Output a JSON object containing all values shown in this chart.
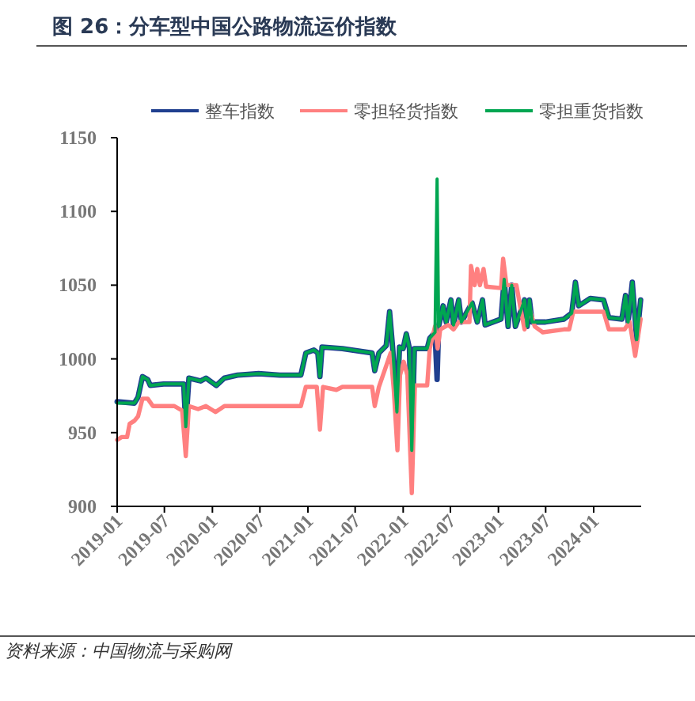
{
  "chart_data": {
    "type": "line",
    "title": "图 26：分车型中国公路物流运价指数",
    "annotations": [
      "资料来源：中国物流与采购网"
    ],
    "xlim": [
      "2019-01",
      "2024-07"
    ],
    "xticks": [
      "2019-01",
      "2019-07",
      "2020-01",
      "2020-07",
      "2021-01",
      "2021-07",
      "2022-01",
      "2022-07",
      "2023-01",
      "2023-07",
      "2024-01"
    ],
    "ylim": [
      900,
      1150
    ],
    "yticks": [
      900,
      950,
      1000,
      1050,
      1100,
      1150
    ],
    "legend": "top",
    "series": [
      {
        "name": "整车指数",
        "color": "#1f3f8f",
        "x": [
          "2019-01-01",
          "2019-03-08",
          "2019-03-22",
          "2019-04-08",
          "2019-04-28",
          "2019-05-08",
          "2019-06-28",
          "2019-09-13",
          "2019-09-21",
          "2019-10-03",
          "2019-11-17",
          "2019-12-07",
          "2020-01-16",
          "2020-02-16",
          "2020-04-06",
          "2020-06-26",
          "2020-09-15",
          "2020-12-05",
          "2020-12-24",
          "2021-01-24",
          "2021-02-08",
          "2021-02-16",
          "2021-02-24",
          "2021-05-13",
          "2021-09-04",
          "2021-09-14",
          "2021-09-30",
          "2021-10-28",
          "2021-11-10",
          "2021-11-22",
          "2021-12-08",
          "2021-12-18",
          "2022-01-01",
          "2022-01-13",
          "2022-01-25",
          "2022-02-03",
          "2022-02-13",
          "2022-04-03",
          "2022-04-13",
          "2022-05-03",
          "2022-05-11",
          "2022-05-17",
          "2022-06-03",
          "2022-06-15",
          "2022-07-03",
          "2022-07-13",
          "2022-08-02",
          "2022-08-12",
          "2022-09-22",
          "2022-10-12",
          "2022-11-01",
          "2022-11-11",
          "2023-01-11",
          "2023-01-23",
          "2023-02-07",
          "2023-02-21",
          "2023-03-07",
          "2023-04-11",
          "2023-04-21",
          "2023-04-30",
          "2023-05-10",
          "2023-06-30",
          "2023-09-09",
          "2023-10-09",
          "2023-10-23",
          "2023-11-05",
          "2023-12-19",
          "2024-02-08",
          "2024-02-28",
          "2024-04-18",
          "2024-05-02",
          "2024-05-12",
          "2024-05-28",
          "2024-06-14",
          "2024-06-29"
        ],
        "values": [
          971,
          970,
          974,
          988,
          986,
          982,
          983,
          983,
          954,
          987,
          985,
          987,
          982,
          987,
          989,
          990,
          989,
          989,
          1004,
          1006,
          1004,
          988,
          1008,
          1007,
          1004,
          992,
          1004,
          1009,
          1032,
          1007,
          964,
          1008,
          1007,
          1017,
          1007,
          938,
          1007,
          1007,
          1014,
          1018,
          986,
          1022,
          1036,
          1025,
          1040,
          1023,
          1040,
          1025,
          1038,
          1025,
          1040,
          1023,
          1027,
          1054,
          1022,
          1050,
          1022,
          1040,
          1022,
          1040,
          1025,
          1025,
          1027,
          1031,
          1052,
          1036,
          1041,
          1040,
          1028,
          1027,
          1043,
          1025,
          1052,
          1013,
          1040
        ]
      },
      {
        "name": "零担轻货指数",
        "color": "#ff8080",
        "x": [
          "2019-01-01",
          "2019-01-18",
          "2019-02-08",
          "2019-02-18",
          "2019-03-08",
          "2019-03-22",
          "2019-04-08",
          "2019-04-28",
          "2019-05-18",
          "2019-08-08",
          "2019-09-07",
          "2019-09-21",
          "2019-10-03",
          "2019-11-07",
          "2019-12-07",
          "2020-01-13",
          "2020-02-16",
          "2020-12-05",
          "2020-12-24",
          "2021-02-04",
          "2021-02-16",
          "2021-02-28",
          "2021-04-20",
          "2021-05-13",
          "2021-09-04",
          "2021-09-14",
          "2021-09-30",
          "2021-11-14",
          "2021-11-26",
          "2021-12-10",
          "2021-12-20",
          "2022-01-03",
          "2022-01-17",
          "2022-02-03",
          "2022-02-15",
          "2022-04-03",
          "2022-04-13",
          "2022-05-03",
          "2022-05-13",
          "2022-05-23",
          "2022-06-23",
          "2022-07-13",
          "2022-08-02",
          "2022-09-12",
          "2022-09-18",
          "2022-10-02",
          "2022-10-12",
          "2022-10-22",
          "2022-11-05",
          "2022-11-15",
          "2023-01-11",
          "2023-01-19",
          "2023-02-01",
          "2023-03-11",
          "2023-03-27",
          "2023-04-11",
          "2023-04-30",
          "2023-05-20",
          "2023-06-20",
          "2023-09-09",
          "2023-09-29",
          "2023-10-15",
          "2023-11-09",
          "2024-02-08",
          "2024-02-28",
          "2024-04-28",
          "2024-05-18",
          "2024-06-08",
          "2024-06-29"
        ],
        "values": [
          945,
          947,
          947,
          956,
          958,
          961,
          973,
          973,
          968,
          968,
          965,
          934,
          968,
          966,
          968,
          964,
          968,
          968,
          981,
          981,
          952,
          981,
          979,
          981,
          981,
          968,
          981,
          1004,
          979,
          938,
          989,
          998,
          989,
          909,
          982,
          982,
          1007,
          1022,
          1007,
          1020,
          1023,
          1020,
          1025,
          1025,
          1063,
          1050,
          1061,
          1050,
          1061,
          1049,
          1048,
          1068,
          1050,
          1050,
          1034,
          1020,
          1034,
          1022,
          1018,
          1020,
          1020,
          1032,
          1032,
          1032,
          1020,
          1020,
          1025,
          1002,
          1027
        ]
      },
      {
        "name": "零担重货指数",
        "color": "#00a651",
        "x": [
          "2019-01-01",
          "2019-03-08",
          "2019-03-22",
          "2019-04-08",
          "2019-04-28",
          "2019-05-08",
          "2019-06-28",
          "2019-09-13",
          "2019-09-21",
          "2019-10-03",
          "2019-11-17",
          "2019-12-07",
          "2020-01-16",
          "2020-02-16",
          "2020-04-06",
          "2020-06-26",
          "2020-09-15",
          "2020-12-05",
          "2020-12-24",
          "2021-01-24",
          "2021-02-08",
          "2021-02-16",
          "2021-02-24",
          "2021-05-13",
          "2021-09-04",
          "2021-09-14",
          "2021-09-30",
          "2021-10-28",
          "2021-11-10",
          "2021-11-22",
          "2021-12-08",
          "2021-12-18",
          "2022-01-01",
          "2022-01-13",
          "2022-01-25",
          "2022-02-03",
          "2022-02-13",
          "2022-04-03",
          "2022-04-13",
          "2022-05-03",
          "2022-05-11",
          "2022-05-17",
          "2022-06-03",
          "2022-06-15",
          "2022-07-03",
          "2022-07-13",
          "2022-08-02",
          "2022-08-12",
          "2022-09-22",
          "2022-10-12",
          "2022-11-01",
          "2022-11-11",
          "2023-01-11",
          "2023-01-23",
          "2023-02-07",
          "2023-02-21",
          "2023-03-07",
          "2023-04-11",
          "2023-04-21",
          "2023-04-30",
          "2023-05-10",
          "2023-06-30",
          "2023-09-09",
          "2023-10-09",
          "2023-10-23",
          "2023-11-05",
          "2023-12-19",
          "2024-02-08",
          "2024-02-28",
          "2024-04-18",
          "2024-05-02",
          "2024-05-12",
          "2024-05-28",
          "2024-06-14",
          "2024-06-29"
        ],
        "values": [
          970,
          970,
          974,
          988,
          986,
          982,
          983,
          983,
          954,
          987,
          985,
          987,
          982,
          987,
          989,
          990,
          989,
          989,
          1004,
          1006,
          1004,
          988,
          1008,
          1007,
          1004,
          992,
          1004,
          1009,
          1032,
          1007,
          964,
          1008,
          1007,
          1017,
          1007,
          938,
          1007,
          1007,
          1014,
          1018,
          1122,
          1022,
          1036,
          1025,
          1040,
          1023,
          1040,
          1025,
          1038,
          1025,
          1040,
          1023,
          1027,
          1054,
          1022,
          1050,
          1022,
          1040,
          1022,
          1040,
          1025,
          1025,
          1027,
          1031,
          1052,
          1036,
          1041,
          1040,
          1028,
          1027,
          1043,
          1025,
          1052,
          1013,
          1040
        ]
      }
    ]
  }
}
